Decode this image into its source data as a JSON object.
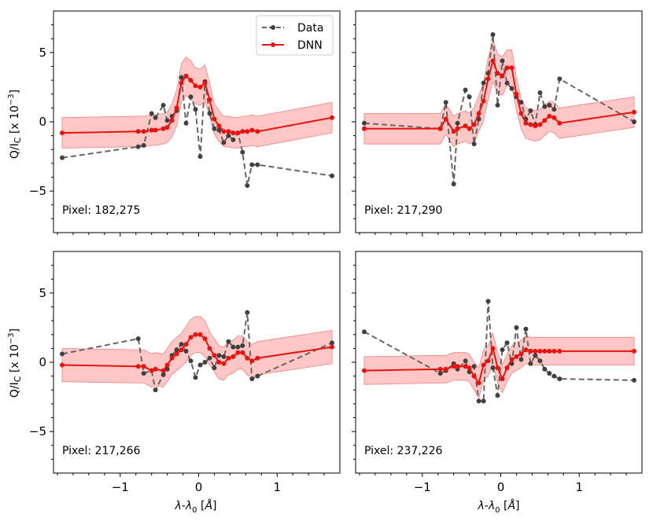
{
  "chart_data": {
    "type": "line",
    "layout": "2x2 panels, shared axes",
    "xlabel": "λ-λ0 [Å]",
    "ylabel": "Q/Ic [x 10^-3]",
    "xlim": [
      -1.85,
      1.8
    ],
    "ylim": [
      -8,
      8
    ],
    "xticks": [
      -1,
      0,
      1
    ],
    "xtick_labels": [
      "−1",
      "0",
      "1"
    ],
    "yticks": [
      -5,
      0,
      5
    ],
    "ytick_labels": [
      "−5",
      "0",
      "5"
    ],
    "legend": {
      "placement": "top-right of first panel",
      "entries": [
        {
          "name": "Data",
          "color": "#666666",
          "style": "dashed with dots"
        },
        {
          "name": "DNN",
          "color": "#e8120e",
          "style": "solid with dots"
        }
      ]
    },
    "colors": {
      "data": "#666666",
      "data_marker": "#404040",
      "dnn": "#e8120e",
      "band": "#ffb3b3"
    },
    "x": [
      -1.74,
      -0.77,
      -0.7,
      -0.6,
      -0.55,
      -0.45,
      -0.4,
      -0.34,
      -0.28,
      -0.22,
      -0.16,
      -0.1,
      -0.04,
      0.02,
      0.08,
      0.14,
      0.2,
      0.26,
      0.32,
      0.38,
      0.44,
      0.5,
      0.56,
      0.62,
      0.68,
      0.75,
      1.7
    ],
    "panels": [
      {
        "label": "Pixel: 182,275",
        "series": [
          {
            "name": "Data",
            "values": [
              -2.6,
              -1.8,
              -1.7,
              0.6,
              0.3,
              1.2,
              0.1,
              0.4,
              0.8,
              3.2,
              -0.1,
              1.8,
              0.9,
              -2.5,
              2.9,
              0.6,
              -0.5,
              -0.6,
              -1.5,
              -1.0,
              -1.3,
              -0.8,
              -2.2,
              -4.6,
              -3.1,
              -3.1,
              -3.9
            ]
          },
          {
            "name": "DNN",
            "values": [
              -0.8,
              -0.7,
              -0.7,
              -0.6,
              -0.6,
              -0.5,
              -0.4,
              0.1,
              1.0,
              2.8,
              3.3,
              3.0,
              2.6,
              2.5,
              2.8,
              1.6,
              0.2,
              -0.3,
              -0.7,
              -0.7,
              -0.8,
              -0.8,
              -0.7,
              -0.7,
              -0.6,
              -0.7,
              0.3
            ]
          },
          {
            "name": "DNN band",
            "values": [
              1.1,
              1.1,
              1.1,
              1.1,
              1.1,
              1.1,
              1.1,
              1.2,
              1.3,
              1.4,
              1.4,
              1.4,
              1.3,
              1.3,
              1.3,
              1.2,
              1.1,
              1.1,
              1.1,
              1.1,
              1.1,
              1.1,
              1.1,
              1.1,
              1.1,
              1.1,
              1.1
            ]
          }
        ]
      },
      {
        "label": "Pixel: 217,290",
        "series": [
          {
            "name": "Data",
            "values": [
              -0.1,
              -0.5,
              1.4,
              -4.5,
              -0.1,
              2.3,
              1.8,
              -1.6,
              0.2,
              2.8,
              3.5,
              6.3,
              1.2,
              4.4,
              2.8,
              2.4,
              1.8,
              1.4,
              0.2,
              0.8,
              -0.2,
              2.1,
              1.1,
              1.2,
              0.9,
              3.1,
              0.0
            ]
          },
          {
            "name": "DNN",
            "values": [
              -0.5,
              -0.5,
              0.2,
              -0.7,
              -0.5,
              -0.3,
              -0.5,
              -0.2,
              0.6,
              1.5,
              3.1,
              4.4,
              3.5,
              3.3,
              3.9,
              3.9,
              2.0,
              0.6,
              -0.1,
              -0.2,
              -0.3,
              -0.2,
              0.1,
              0.4,
              0.3,
              -0.1,
              0.7
            ]
          },
          {
            "name": "DNN band",
            "values": [
              1.1,
              1.1,
              1.1,
              1.1,
              1.1,
              1.1,
              1.1,
              1.2,
              1.3,
              1.4,
              1.5,
              1.5,
              1.4,
              1.4,
              1.3,
              1.3,
              1.2,
              1.1,
              1.1,
              1.1,
              1.1,
              1.1,
              1.1,
              1.1,
              1.1,
              1.1,
              1.1
            ]
          }
        ]
      },
      {
        "label": "Pixel: 217,266",
        "series": [
          {
            "name": "Data",
            "values": [
              0.6,
              1.7,
              -0.8,
              -0.6,
              -2.0,
              -0.9,
              -0.5,
              0.5,
              0.9,
              1.3,
              0.8,
              0.1,
              -1.1,
              -0.2,
              0.0,
              0.3,
              -0.4,
              0.5,
              0.4,
              1.5,
              1.1,
              1.1,
              1.2,
              3.6,
              -1.2,
              -1.0,
              1.4
            ]
          },
          {
            "name": "DNN",
            "values": [
              -0.2,
              -0.3,
              -0.3,
              -0.6,
              -0.5,
              -0.6,
              -0.2,
              0.3,
              0.6,
              0.9,
              1.3,
              1.8,
              2.0,
              2.0,
              1.7,
              1.0,
              0.5,
              0.0,
              -0.1,
              0.3,
              0.4,
              0.7,
              0.7,
              0.3,
              0.1,
              0.3,
              1.1
            ]
          },
          {
            "name": "DNN band",
            "values": [
              1.2,
              1.2,
              1.2,
              1.2,
              1.2,
              1.2,
              1.2,
              1.2,
              1.2,
              1.2,
              1.3,
              1.3,
              1.3,
              1.3,
              1.3,
              1.2,
              1.2,
              1.2,
              1.2,
              1.2,
              1.2,
              1.2,
              1.2,
              1.2,
              1.2,
              1.2,
              1.2
            ]
          }
        ]
      },
      {
        "label": "Pixel: 237,226",
        "series": [
          {
            "name": "Data",
            "values": [
              2.2,
              -0.8,
              -0.6,
              -0.1,
              -0.5,
              0.1,
              -0.7,
              -0.3,
              -2.8,
              -2.8,
              4.4,
              -0.4,
              -2.4,
              0.9,
              1.4,
              -0.1,
              2.5,
              0.2,
              2.4,
              -0.1,
              0.5,
              0.1,
              -0.5,
              -0.8,
              -1.0,
              -1.2,
              -1.3
            ]
          },
          {
            "name": "DNN",
            "values": [
              -0.6,
              -0.5,
              -0.5,
              -0.3,
              -0.3,
              -0.3,
              -0.4,
              -1.0,
              -1.5,
              -0.2,
              0.1,
              1.0,
              -0.4,
              -1.2,
              -0.4,
              0.2,
              0.4,
              0.6,
              0.9,
              0.8,
              0.8,
              0.8,
              0.8,
              0.8,
              0.8,
              0.8,
              0.8
            ]
          },
          {
            "name": "DNN band",
            "values": [
              1.0,
              1.0,
              1.0,
              1.0,
              1.0,
              1.0,
              1.0,
              1.0,
              1.1,
              1.1,
              1.1,
              1.1,
              1.1,
              1.0,
              1.0,
              1.0,
              1.0,
              1.0,
              1.0,
              1.0,
              1.0,
              1.0,
              1.0,
              1.0,
              1.0,
              1.0,
              1.0
            ]
          }
        ]
      }
    ]
  }
}
